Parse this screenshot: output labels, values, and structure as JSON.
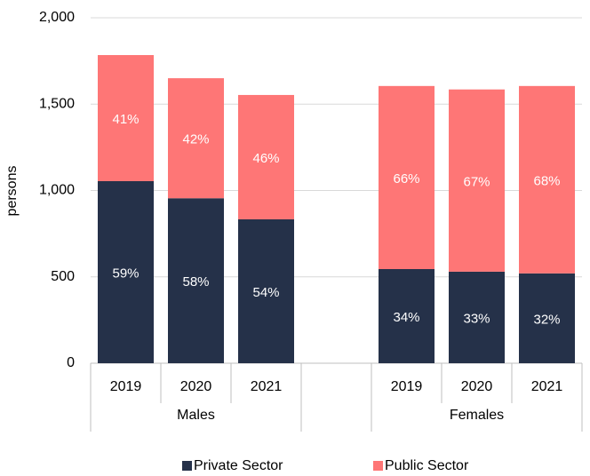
{
  "chart_data": {
    "type": "stacked-bar",
    "y_label": "persons",
    "groups": [
      {
        "name": "Males",
        "categories": [
          "2019",
          "2020",
          "2021"
        ]
      },
      {
        "name": "Females",
        "categories": [
          "2019",
          "2020",
          "2021"
        ]
      }
    ],
    "series": [
      {
        "name": "Private Sector",
        "color": "#253149",
        "values": [
          1054,
          955,
          833,
          545,
          530,
          520
        ],
        "value_labels": [
          "59%",
          "58%",
          "54%",
          "34%",
          "33%",
          "32%"
        ]
      },
      {
        "name": "Public Sector",
        "color": "#fe7676",
        "values": [
          730,
          695,
          720,
          1060,
          1055,
          1085
        ],
        "value_labels": [
          "41%",
          "42%",
          "46%",
          "66%",
          "67%",
          "68%"
        ]
      }
    ],
    "ylim": [
      0,
      2000
    ],
    "yticks": [
      0,
      500,
      {
        "value": 1000,
        "label": "1,000"
      },
      {
        "value": 1500,
        "label": "1,500"
      },
      {
        "value": 2000,
        "label": "2,000"
      }
    ],
    "grid": true,
    "legend": "bottom"
  }
}
